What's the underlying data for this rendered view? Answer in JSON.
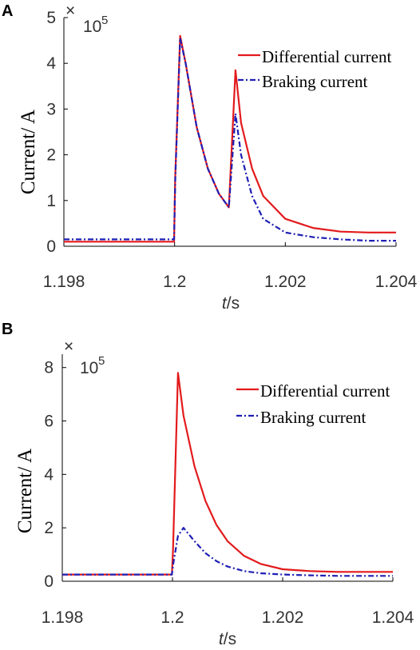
{
  "panels": [
    {
      "label": "A",
      "multiplier": {
        "times": "×",
        "base": "10",
        "exponent": "5"
      },
      "ylabel": "Current/ A",
      "xlabel": {
        "italic": "t",
        "rest": "/s"
      },
      "legend": [
        "Differential current",
        "Braking current"
      ]
    },
    {
      "label": "B",
      "multiplier": {
        "times": "×",
        "base": "10",
        "exponent": "5"
      },
      "ylabel": "Current/ A",
      "xlabel": {
        "italic": "t",
        "rest": "/s"
      },
      "legend": [
        "Differential current",
        "Braking current"
      ]
    }
  ],
  "chart_data": [
    {
      "type": "line",
      "panel": "A",
      "xlim": [
        1.198,
        1.204
      ],
      "ylim": [
        0,
        5
      ],
      "xticks": [
        "1.198",
        "1.2",
        "1.202",
        "1.204"
      ],
      "yticks": [
        "0",
        "1",
        "2",
        "3",
        "4",
        "5"
      ],
      "y_multiplier": "10^5",
      "colors": {
        "differential": "#e31a1c",
        "braking": "#1f1fb4"
      },
      "series": [
        {
          "name": "Differential current",
          "style": "solid",
          "x": [
            1.198,
            1.19999,
            1.20001,
            1.2001,
            1.2002,
            1.2004,
            1.2006,
            1.2008,
            1.20098,
            1.2011,
            1.2012,
            1.2014,
            1.2016,
            1.202,
            1.2025,
            1.203,
            1.2035,
            1.204
          ],
          "y": [
            0.1,
            0.1,
            1.5,
            4.6,
            4.0,
            2.6,
            1.7,
            1.15,
            0.85,
            3.85,
            2.7,
            1.7,
            1.1,
            0.6,
            0.4,
            0.32,
            0.3,
            0.3
          ]
        },
        {
          "name": "Braking current",
          "style": "dashdot",
          "x": [
            1.198,
            1.19999,
            1.20001,
            1.2001,
            1.2002,
            1.2004,
            1.2006,
            1.2008,
            1.20098,
            1.2011,
            1.2012,
            1.2014,
            1.2016,
            1.202,
            1.2025,
            1.203,
            1.2035,
            1.204
          ],
          "y": [
            0.15,
            0.15,
            1.4,
            4.55,
            4.0,
            2.6,
            1.7,
            1.15,
            0.85,
            2.9,
            2.0,
            1.1,
            0.6,
            0.3,
            0.2,
            0.15,
            0.12,
            0.12
          ]
        }
      ]
    },
    {
      "type": "line",
      "panel": "B",
      "xlim": [
        1.198,
        1.204
      ],
      "ylim": [
        0,
        8.5
      ],
      "xticks": [
        "1.198",
        "1.2",
        "1.202",
        "1.204"
      ],
      "yticks": [
        "0",
        "2",
        "4",
        "6",
        "8"
      ],
      "y_multiplier": "10^5",
      "colors": {
        "differential": "#e31a1c",
        "braking": "#1f1fb4"
      },
      "series": [
        {
          "name": "Differential current",
          "style": "solid",
          "x": [
            1.198,
            1.19999,
            1.20001,
            1.2001,
            1.2002,
            1.2004,
            1.2006,
            1.2008,
            1.201,
            1.2013,
            1.2016,
            1.202,
            1.2025,
            1.203,
            1.2035,
            1.204
          ],
          "y": [
            0.25,
            0.25,
            1.2,
            7.8,
            6.2,
            4.3,
            3.0,
            2.1,
            1.5,
            0.95,
            0.65,
            0.45,
            0.38,
            0.35,
            0.35,
            0.35
          ],
          "note": "peak ~7.8e5"
        },
        {
          "name": "Braking current",
          "style": "dashdot",
          "x": [
            1.198,
            1.19999,
            1.20001,
            1.2001,
            1.2002,
            1.2004,
            1.2006,
            1.2008,
            1.201,
            1.2013,
            1.2016,
            1.202,
            1.2025,
            1.203,
            1.2035,
            1.204
          ],
          "y": [
            0.25,
            0.25,
            0.6,
            1.7,
            2.0,
            1.5,
            1.05,
            0.75,
            0.55,
            0.38,
            0.3,
            0.25,
            0.22,
            0.2,
            0.2,
            0.2
          ]
        }
      ]
    }
  ]
}
